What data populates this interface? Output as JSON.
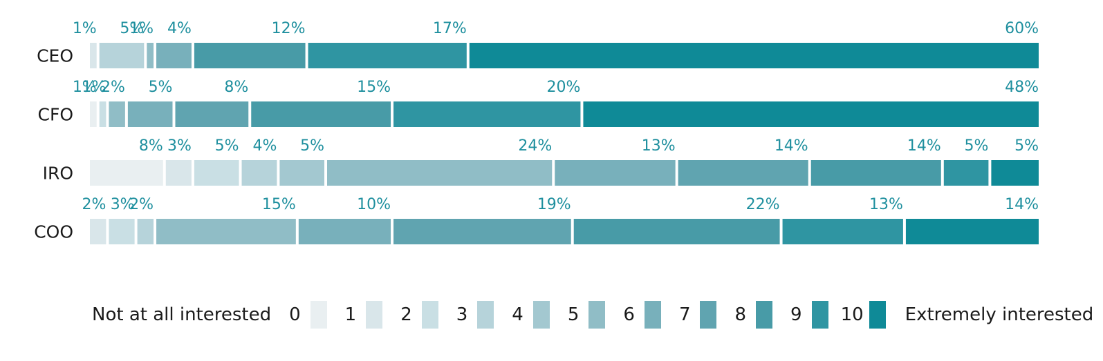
{
  "chart_data": {
    "type": "bar",
    "orientation": "horizontal",
    "stacked": true,
    "normalized": true,
    "categories": [
      "CEO",
      "CFO",
      "IRO",
      "COO"
    ],
    "scale_points": [
      "0",
      "1",
      "2",
      "3",
      "4",
      "5",
      "6",
      "7",
      "8",
      "9",
      "10"
    ],
    "colors": [
      "#e9eff1",
      "#d9e6ea",
      "#c9dfe4",
      "#b6d3da",
      "#a3c8d0",
      "#90bdc6",
      "#78b0bb",
      "#60a4b0",
      "#489ba7",
      "#2f95a2",
      "#0f8a97"
    ],
    "rows": [
      {
        "name": "CEO",
        "values": [
          0,
          1,
          0,
          5,
          0,
          1,
          4,
          0,
          12,
          17,
          60
        ],
        "labels": [
          "",
          "1%",
          "",
          "5%",
          "",
          "1%",
          "4%",
          "",
          "12%",
          "17%",
          "60%"
        ]
      },
      {
        "name": "CFO",
        "values": [
          1,
          0,
          1,
          0,
          0,
          2,
          5,
          8,
          15,
          20,
          48
        ],
        "labels": [
          "1%",
          "",
          "1%",
          "",
          "",
          "2%",
          "5%",
          "8%",
          "15%",
          "20%",
          "48%"
        ]
      },
      {
        "name": "IRO",
        "values": [
          8,
          3,
          5,
          4,
          5,
          24,
          13,
          14,
          14,
          5,
          5
        ],
        "labels": [
          "8%",
          "3%",
          "5%",
          "4%",
          "5%",
          "24%",
          "13%",
          "14%",
          "14%",
          "5%",
          "5%"
        ]
      },
      {
        "name": "COO",
        "values": [
          0,
          2,
          3,
          2,
          0,
          15,
          10,
          19,
          22,
          13,
          14
        ],
        "labels": [
          "",
          "2%",
          "3%",
          "2%",
          "",
          "15%",
          "10%",
          "19%",
          "22%",
          "13%",
          "14%"
        ]
      }
    ],
    "legend": {
      "left_label": "Not at all interested",
      "right_label": "Extremely interested",
      "position": "bottom"
    }
  }
}
